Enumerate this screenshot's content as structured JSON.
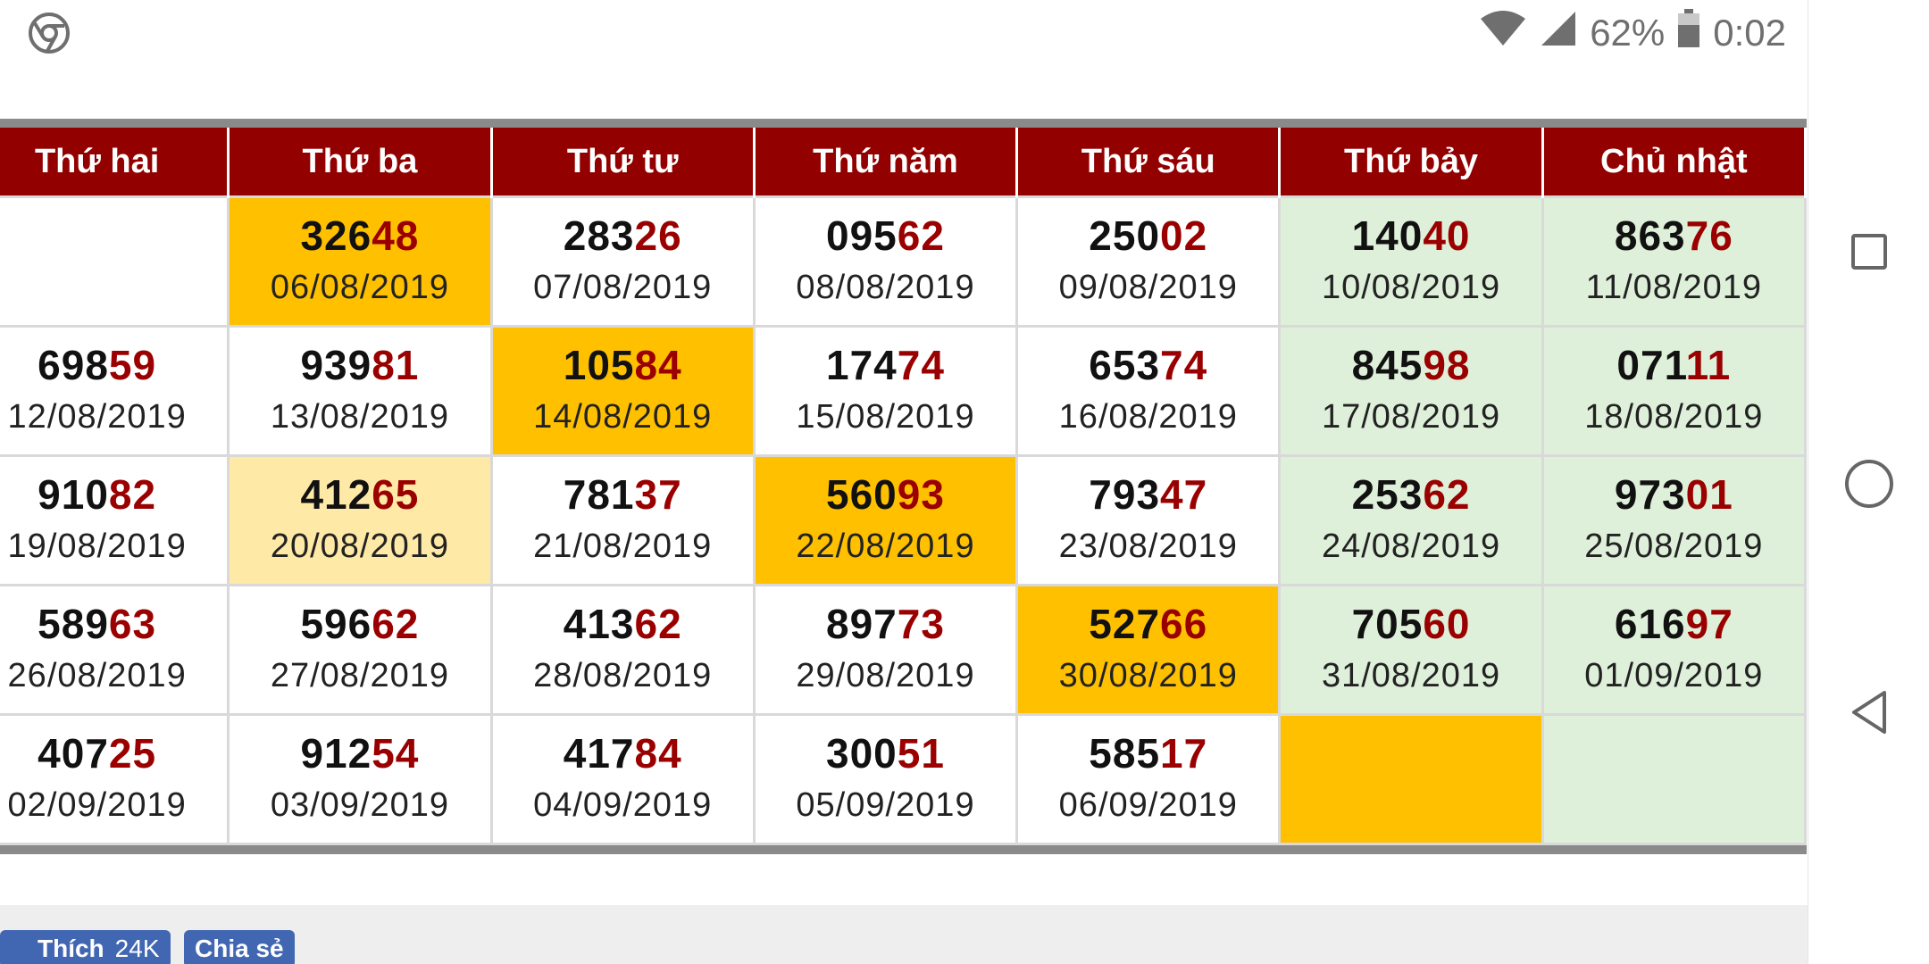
{
  "status": {
    "battery": "62%",
    "time": "0:02"
  },
  "calendar": {
    "headers": [
      "Thứ hai",
      "Thứ ba",
      "Thứ tư",
      "Thứ năm",
      "Thứ sáu",
      "Thứ bảy",
      "Chủ nhật"
    ],
    "rows": [
      [
        {
          "head": "",
          "tail": "",
          "date": "",
          "bg": "normal"
        },
        {
          "head": "326",
          "tail": "48",
          "date": "06/08/2019",
          "bg": "hl"
        },
        {
          "head": "283",
          "tail": "26",
          "date": "07/08/2019",
          "bg": "normal"
        },
        {
          "head": "095",
          "tail": "62",
          "date": "08/08/2019",
          "bg": "normal"
        },
        {
          "head": "250",
          "tail": "02",
          "date": "09/08/2019",
          "bg": "normal"
        },
        {
          "head": "140",
          "tail": "40",
          "date": "10/08/2019",
          "bg": "weekend"
        },
        {
          "head": "863",
          "tail": "76",
          "date": "11/08/2019",
          "bg": "weekend"
        }
      ],
      [
        {
          "head": "698",
          "tail": "59",
          "date": "12/08/2019",
          "bg": "normal"
        },
        {
          "head": "939",
          "tail": "81",
          "date": "13/08/2019",
          "bg": "normal"
        },
        {
          "head": "105",
          "tail": "84",
          "date": "14/08/2019",
          "bg": "hl"
        },
        {
          "head": "174",
          "tail": "74",
          "date": "15/08/2019",
          "bg": "normal"
        },
        {
          "head": "653",
          "tail": "74",
          "date": "16/08/2019",
          "bg": "normal"
        },
        {
          "head": "845",
          "tail": "98",
          "date": "17/08/2019",
          "bg": "weekend"
        },
        {
          "head": "071",
          "tail": "11",
          "date": "18/08/2019",
          "bg": "weekend"
        }
      ],
      [
        {
          "head": "910",
          "tail": "82",
          "date": "19/08/2019",
          "bg": "normal"
        },
        {
          "head": "412",
          "tail": "65",
          "date": "20/08/2019",
          "bg": "hl-light"
        },
        {
          "head": "781",
          "tail": "37",
          "date": "21/08/2019",
          "bg": "normal"
        },
        {
          "head": "560",
          "tail": "93",
          "date": "22/08/2019",
          "bg": "hl"
        },
        {
          "head": "793",
          "tail": "47",
          "date": "23/08/2019",
          "bg": "normal"
        },
        {
          "head": "253",
          "tail": "62",
          "date": "24/08/2019",
          "bg": "weekend"
        },
        {
          "head": "973",
          "tail": "01",
          "date": "25/08/2019",
          "bg": "weekend"
        }
      ],
      [
        {
          "head": "589",
          "tail": "63",
          "date": "26/08/2019",
          "bg": "normal"
        },
        {
          "head": "596",
          "tail": "62",
          "date": "27/08/2019",
          "bg": "normal"
        },
        {
          "head": "413",
          "tail": "62",
          "date": "28/08/2019",
          "bg": "normal"
        },
        {
          "head": "897",
          "tail": "73",
          "date": "29/08/2019",
          "bg": "normal"
        },
        {
          "head": "527",
          "tail": "66",
          "date": "30/08/2019",
          "bg": "hl"
        },
        {
          "head": "705",
          "tail": "60",
          "date": "31/08/2019",
          "bg": "weekend"
        },
        {
          "head": "616",
          "tail": "97",
          "date": "01/09/2019",
          "bg": "weekend"
        }
      ],
      [
        {
          "head": "407",
          "tail": "25",
          "date": "02/09/2019",
          "bg": "normal"
        },
        {
          "head": "912",
          "tail": "54",
          "date": "03/09/2019",
          "bg": "normal"
        },
        {
          "head": "417",
          "tail": "84",
          "date": "04/09/2019",
          "bg": "normal"
        },
        {
          "head": "300",
          "tail": "51",
          "date": "05/09/2019",
          "bg": "normal"
        },
        {
          "head": "585",
          "tail": "17",
          "date": "06/09/2019",
          "bg": "normal"
        },
        {
          "head": "",
          "tail": "",
          "date": "",
          "bg": "hl"
        },
        {
          "head": "",
          "tail": "",
          "date": "",
          "bg": "weekend"
        }
      ]
    ]
  },
  "social": {
    "like_label": "Thích",
    "like_count": "24K",
    "share_label": "Chia sẻ"
  },
  "colors": {
    "header_bg": "#930000",
    "tail_text": "#9a0000",
    "highlight": "#ffc000",
    "highlight_light": "#ffe9a6",
    "weekend": "#dff0da"
  },
  "icons": {
    "status_left": "chrome-icon",
    "wifi": "wifi-icon",
    "signal": "signal-icon",
    "battery": "battery-icon",
    "nav_recents": "recents-square-icon",
    "nav_home": "home-circle-icon",
    "nav_back": "back-triangle-icon",
    "like": "thumbs-up-icon"
  }
}
